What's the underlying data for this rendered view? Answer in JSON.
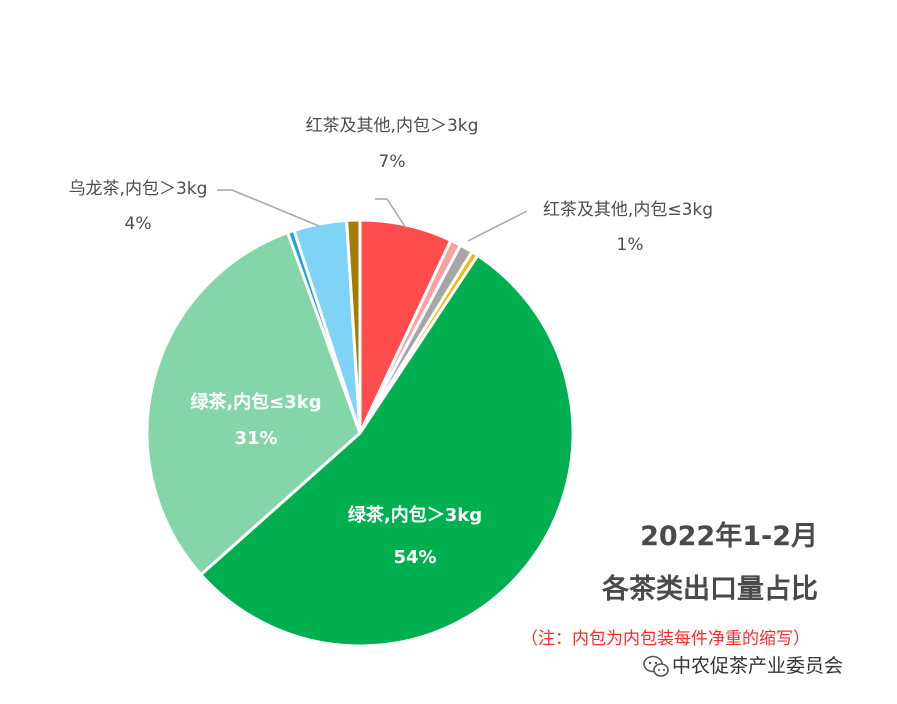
{
  "chart_data": {
    "type": "pie",
    "title_line1": "2022年1-2月",
    "title_line2": "各茶类出口量占比",
    "note": "（注：内包为内包装每件净重的缩写）",
    "slices": [
      {
        "name": "红茶及其他,内包＞3kg",
        "value": 7,
        "display": "7%",
        "color": "#ff4d4d",
        "label": "outside-top"
      },
      {
        "name": "",
        "value": 0.8,
        "display": "",
        "color": "#f7a1a1",
        "label": "none"
      },
      {
        "name": "红茶及其他,内包≤3kg",
        "value": 1,
        "display": "1%",
        "color": "#a6a6a6",
        "label": "outside-right"
      },
      {
        "name": "",
        "value": 0.5,
        "display": "",
        "color": "#f5b800",
        "label": "none"
      },
      {
        "name": "绿茶,内包＞3kg",
        "value": 54,
        "display": "54%",
        "color": "#00b050",
        "label": "inside"
      },
      {
        "name": "绿茶,内包≤3kg",
        "value": 31,
        "display": "31%",
        "color": "#84d6a8",
        "label": "inside"
      },
      {
        "name": "",
        "value": 0.5,
        "display": "",
        "color": "#1fa3e0",
        "label": "none"
      },
      {
        "name": "乌龙茶,内包＞3kg",
        "value": 4,
        "display": "4%",
        "color": "#7fd3f7",
        "label": "outside-left"
      },
      {
        "name": "",
        "value": 1,
        "display": "",
        "color": "#a67c00",
        "label": "none"
      }
    ]
  },
  "watermark": {
    "text": "中农促茶产业委员会",
    "icon": "wechat-icon"
  }
}
